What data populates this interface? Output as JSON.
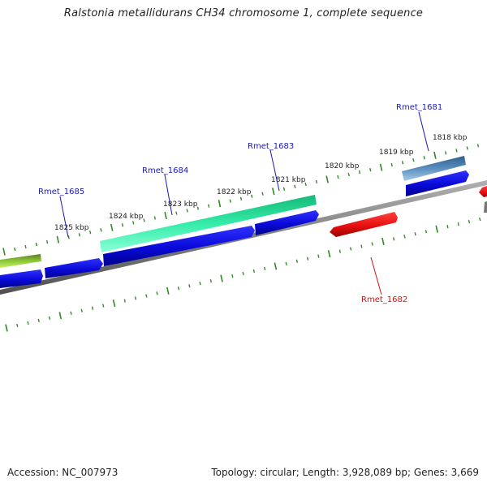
{
  "header": {
    "title": "Ralstonia metallidurans CH34 chromosome 1, complete sequence"
  },
  "footer": {
    "accession": "Accession: NC_007973",
    "summary": "Topology: circular; Length: 3,928,089 bp; Genes: 3,669"
  },
  "colors": {
    "backbone": "#808080",
    "ticks": "#2e8b22",
    "tick_label": "#222222",
    "label_blue": "#1a1ab4",
    "label_red": "#c81414"
  },
  "ticks": [
    {
      "label": "1825 kbp"
    },
    {
      "label": "1824 kbp"
    },
    {
      "label": "1823 kbp"
    },
    {
      "label": "1822 kbp"
    },
    {
      "label": "1821 kbp"
    },
    {
      "label": "1820 kbp"
    },
    {
      "label": "1819 kbp"
    },
    {
      "label": "1818 kbp"
    }
  ],
  "gene_labels": [
    {
      "text": "Rmet_1685",
      "color": "#1a1ab4"
    },
    {
      "text": "Rmet_1684",
      "color": "#1a1ab4"
    },
    {
      "text": "Rmet_1683",
      "color": "#1a1ab4"
    },
    {
      "text": "Rmet_1681",
      "color": "#1a1ab4"
    },
    {
      "text": "Rmet_1682",
      "color": "#c81414"
    }
  ],
  "features": [
    {
      "name": "olive-feature",
      "color": "#7ca82c",
      "strand": "outer"
    },
    {
      "name": "rmet-1684-feature",
      "color": "#2ee8a0",
      "strand": "outer"
    },
    {
      "name": "rmet-1681-feature",
      "color": "#4a7fb0",
      "strand": "outer"
    },
    {
      "name": "blue-cds",
      "color": "#1010e0",
      "strand": "cds"
    },
    {
      "name": "rmet-1682-feature",
      "color": "#e81010",
      "strand": "reverse"
    }
  ]
}
